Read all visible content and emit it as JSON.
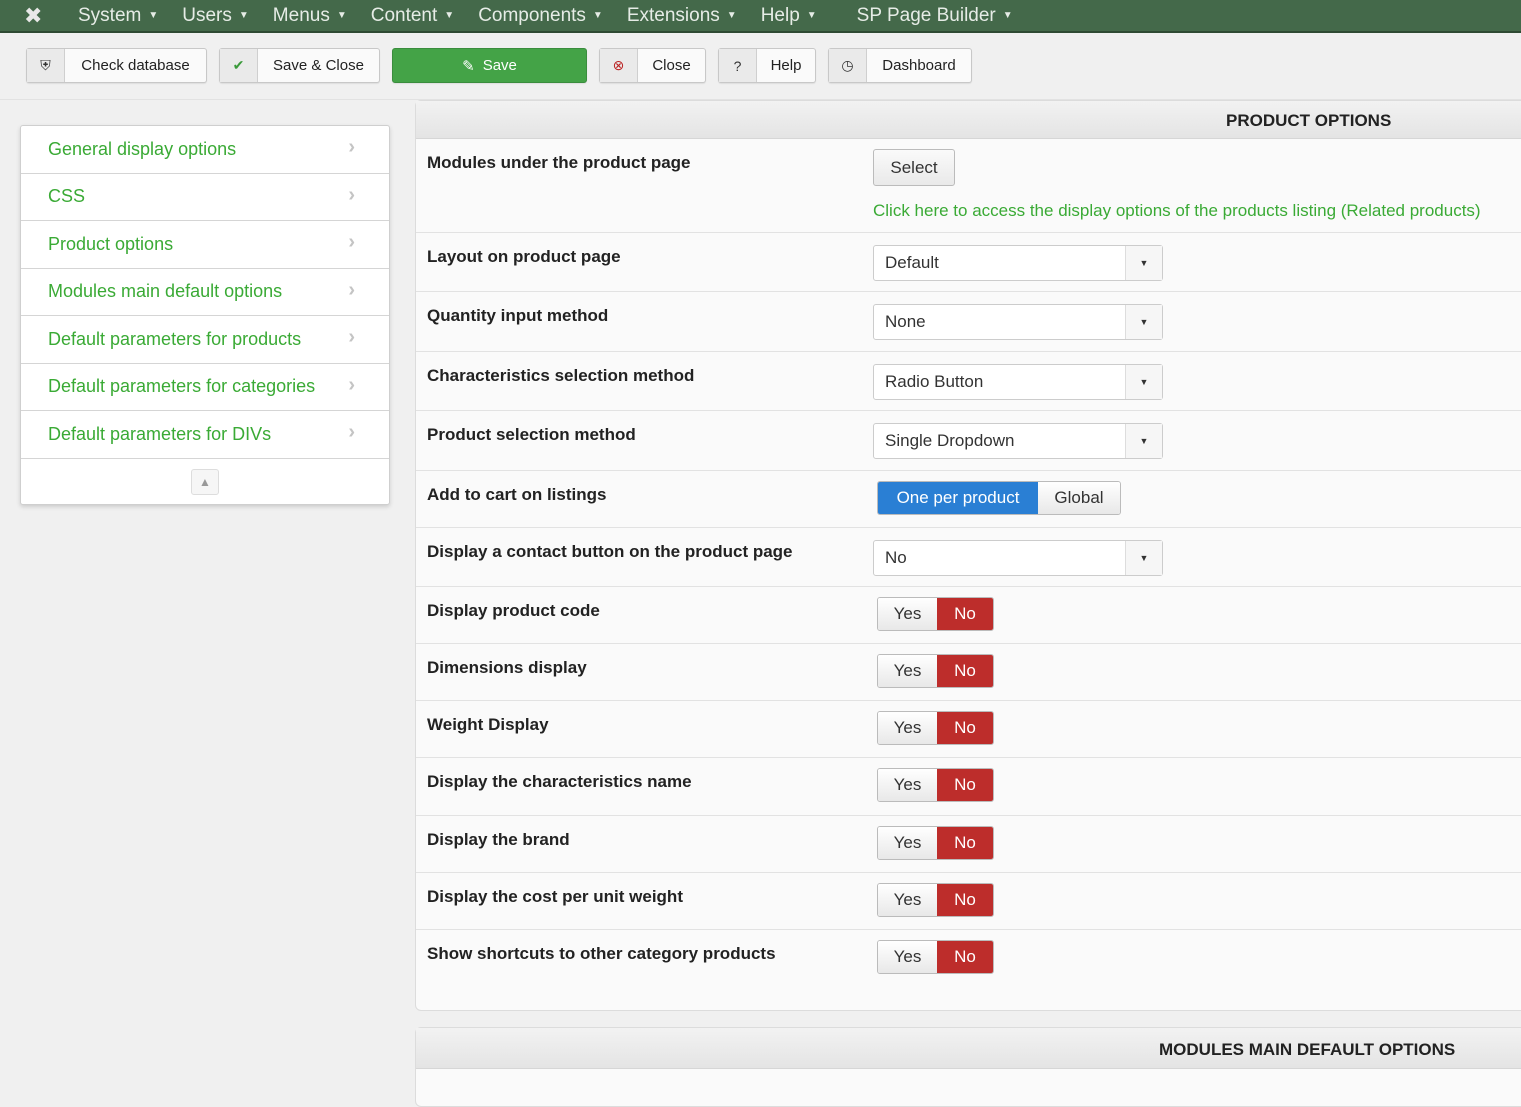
{
  "nav": {
    "items": [
      "System",
      "Users",
      "Menus",
      "Content",
      "Components",
      "Extensions",
      "Help",
      "SP Page Builder"
    ]
  },
  "toolbar": {
    "check_database": "Check database",
    "save_close": "Save & Close",
    "save": "Save",
    "close": "Close",
    "help": "Help",
    "dashboard": "Dashboard"
  },
  "sidebar": {
    "items": [
      "General display options",
      "CSS",
      "Product options",
      "Modules main default options",
      "Default parameters for products",
      "Default parameters for categories",
      "Default parameters for DIVs"
    ]
  },
  "product_options": {
    "title": "PRODUCT OPTIONS",
    "modules_row": {
      "label": "Modules under the product page",
      "button": "Select",
      "link": "Click here to access the display options of the products listing (Related products)"
    },
    "rows": [
      {
        "type": "select",
        "label": "Layout on product page",
        "value": "Default"
      },
      {
        "type": "select",
        "label": "Quantity input method",
        "value": "None"
      },
      {
        "type": "select",
        "label": "Characteristics selection method",
        "value": "Radio Button"
      },
      {
        "type": "select",
        "label": "Product selection method",
        "value": "Single Dropdown"
      },
      {
        "type": "segment",
        "label": "Add to cart on listings",
        "options": [
          "One per product",
          "Global"
        ],
        "selected": "One per product"
      },
      {
        "type": "select",
        "label": "Display a contact button on the product page",
        "value": "No"
      },
      {
        "type": "toggle",
        "label": "Display product code",
        "options": [
          "Yes",
          "No"
        ],
        "selected": "No"
      },
      {
        "type": "toggle",
        "label": "Dimensions display",
        "options": [
          "Yes",
          "No"
        ],
        "selected": "No"
      },
      {
        "type": "toggle",
        "label": "Weight Display",
        "options": [
          "Yes",
          "No"
        ],
        "selected": "No"
      },
      {
        "type": "toggle",
        "label": "Display the characteristics name",
        "options": [
          "Yes",
          "No"
        ],
        "selected": "No"
      },
      {
        "type": "toggle",
        "label": "Display the brand",
        "options": [
          "Yes",
          "No"
        ],
        "selected": "No"
      },
      {
        "type": "toggle",
        "label": "Display the cost per unit weight",
        "options": [
          "Yes",
          "No"
        ],
        "selected": "No"
      },
      {
        "type": "toggle",
        "label": "Show shortcuts to other category products",
        "options": [
          "Yes",
          "No"
        ],
        "selected": "No"
      }
    ]
  },
  "modules_main": {
    "title": "MODULES MAIN DEFAULT OPTIONS"
  },
  "colors": {
    "navbar": "#44694a",
    "accent_green": "#3aaa35",
    "save_button": "#44a347",
    "no_active": "#bd2d2b",
    "segment_active": "#2a7fd4"
  }
}
